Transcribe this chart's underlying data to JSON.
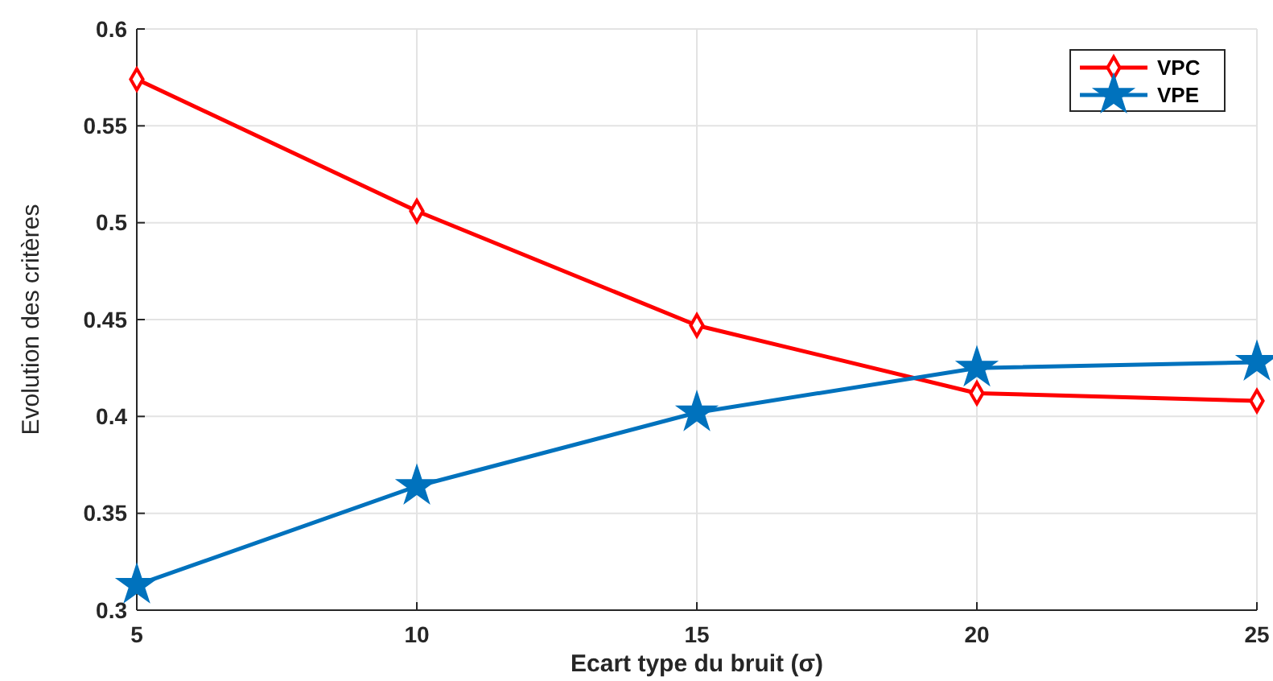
{
  "chart_data": {
    "type": "line",
    "xlabel": "Ecart type du bruit (σ)",
    "ylabel": "Evolution des critères",
    "x": [
      5,
      10,
      15,
      20,
      25
    ],
    "series": [
      {
        "name": "VPC",
        "color": "#ff0000",
        "marker": "diamond",
        "values": [
          0.574,
          0.506,
          0.447,
          0.412,
          0.408
        ]
      },
      {
        "name": "VPE",
        "color": "#0072bd",
        "marker": "star",
        "values": [
          0.313,
          0.364,
          0.402,
          0.425,
          0.428
        ]
      }
    ],
    "xlim": [
      5,
      25
    ],
    "xticks": [
      5,
      10,
      15,
      20,
      25
    ],
    "ylim": [
      0.3,
      0.6
    ],
    "yticks": [
      0.3,
      0.35,
      0.4,
      0.45,
      0.5,
      0.55,
      0.6
    ],
    "grid": true,
    "legend": "top right",
    "line_style": "solid"
  }
}
